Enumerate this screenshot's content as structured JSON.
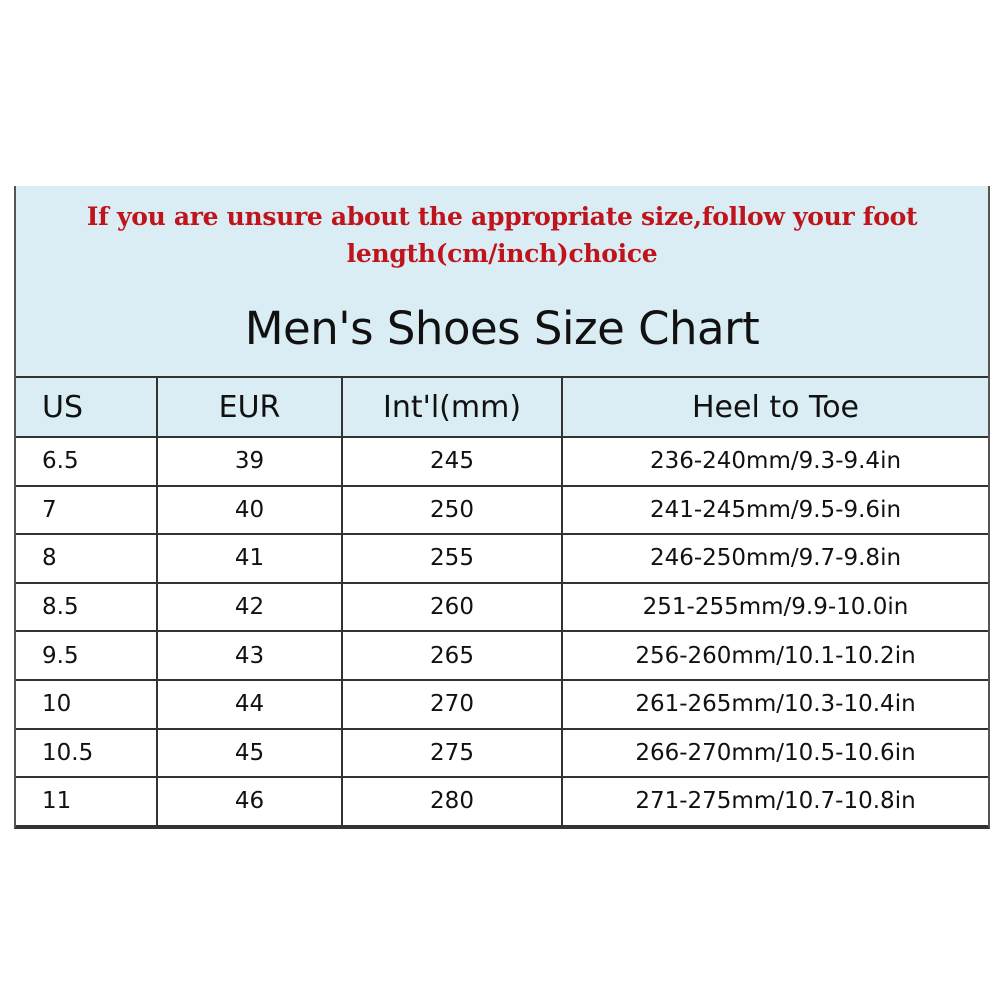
{
  "notice": {
    "line1": "If you are unsure about the appropriate size,follow your foot",
    "line2": "length(cm/inch)choice",
    "color": "#c0141c"
  },
  "title": "Men's Shoes Size Chart",
  "header_bg": "#daedf4",
  "table": {
    "columns": [
      "US",
      "EUR",
      "Int'l(mm)",
      "Heel to Toe"
    ],
    "rows": [
      [
        "6.5",
        "39",
        "245",
        "236-240mm/9.3-9.4in"
      ],
      [
        "7",
        "40",
        "250",
        "241-245mm/9.5-9.6in"
      ],
      [
        "8",
        "41",
        "255",
        "246-250mm/9.7-9.8in"
      ],
      [
        "8.5",
        "42",
        "260",
        "251-255mm/9.9-10.0in"
      ],
      [
        "9.5",
        "43",
        "265",
        "256-260mm/10.1-10.2in"
      ],
      [
        "10",
        "44",
        "270",
        "261-265mm/10.3-10.4in"
      ],
      [
        "10.5",
        "45",
        "275",
        "266-270mm/10.5-10.6in"
      ],
      [
        "11",
        "46",
        "280",
        "271-275mm/10.7-10.8in"
      ]
    ]
  }
}
